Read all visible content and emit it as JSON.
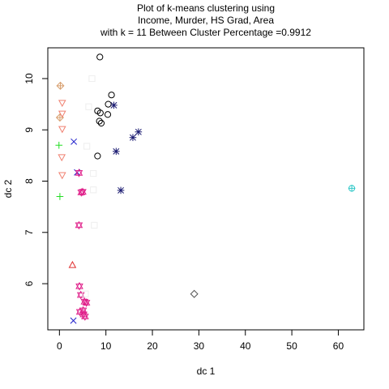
{
  "chart_data": {
    "type": "scatter",
    "title_lines": [
      "Plot of k-means clustering using",
      "Income, Murder, HS Grad, Area",
      "with  k = 11 Between Cluster Percentage =0.9912"
    ],
    "xlabel": "dc 1",
    "ylabel": "dc 2",
    "xlim": [
      -2.5,
      65.5
    ],
    "ylim": [
      5.1,
      10.6
    ],
    "xticks": [
      "0",
      "10",
      "20",
      "30",
      "40",
      "50",
      "60"
    ],
    "yticks": [
      "6",
      "7",
      "8",
      "9",
      "10"
    ],
    "grid": false,
    "legend": "none",
    "series": [
      {
        "symbol": "circle",
        "color": "#000000",
        "points": [
          [
            8.7,
            10.42
          ],
          [
            11.2,
            9.68
          ],
          [
            10.5,
            9.5
          ],
          [
            8.2,
            9.37
          ],
          [
            8.8,
            9.33
          ],
          [
            10.4,
            9.3
          ],
          [
            8.6,
            9.17
          ],
          [
            9.0,
            9.13
          ],
          [
            8.2,
            8.49
          ]
        ]
      },
      {
        "symbol": "diamond",
        "color": "#555555",
        "points": [
          [
            29.0,
            5.8
          ]
        ]
      },
      {
        "symbol": "diamond-plus",
        "color": "#d8a070",
        "points": [
          [
            0.2,
            9.86
          ],
          [
            0.1,
            9.24
          ]
        ]
      },
      {
        "symbol": "tri-down",
        "color": "#f08070",
        "points": [
          [
            0.6,
            9.53
          ],
          [
            0.6,
            9.32
          ],
          [
            0.6,
            9.02
          ],
          [
            0.5,
            8.47
          ],
          [
            0.6,
            8.12
          ]
        ]
      },
      {
        "symbol": "plus",
        "color": "#22dd22",
        "points": [
          [
            -0.1,
            8.7
          ],
          [
            0.1,
            7.7
          ]
        ]
      },
      {
        "symbol": "cross",
        "color": "#2222cc",
        "points": [
          [
            3.1,
            8.77
          ],
          [
            3.8,
            8.17
          ],
          [
            3.0,
            5.28
          ]
        ]
      },
      {
        "symbol": "asterisk",
        "color": "#191970",
        "points": [
          [
            11.7,
            9.48
          ],
          [
            17.0,
            8.96
          ],
          [
            15.8,
            8.85
          ],
          [
            12.2,
            8.58
          ],
          [
            13.2,
            7.82
          ]
        ]
      },
      {
        "symbol": "triangle",
        "color": "#e03030",
        "points": [
          [
            2.8,
            6.36
          ]
        ]
      },
      {
        "symbol": "star",
        "color": "#e0208a",
        "points": [
          [
            4.2,
            8.16
          ],
          [
            5.0,
            7.79
          ],
          [
            4.7,
            7.78
          ],
          [
            4.2,
            7.14
          ],
          [
            4.3,
            5.95
          ],
          [
            4.6,
            5.78
          ],
          [
            5.4,
            5.65
          ],
          [
            5.8,
            5.63
          ],
          [
            4.4,
            5.45
          ],
          [
            5.1,
            5.48
          ],
          [
            5.2,
            5.4
          ],
          [
            5.5,
            5.36
          ]
        ]
      },
      {
        "symbol": "circle-plus",
        "color": "#30c8c8",
        "points": [
          [
            62.9,
            7.86
          ]
        ]
      },
      {
        "symbol": "square",
        "color": "#eeeeee",
        "points": [
          [
            7.0,
            10.0
          ],
          [
            6.3,
            9.45
          ],
          [
            5.9,
            8.68
          ],
          [
            7.3,
            8.15
          ],
          [
            7.3,
            7.83
          ],
          [
            7.5,
            7.14
          ],
          [
            5.6,
            5.8
          ]
        ]
      }
    ]
  }
}
